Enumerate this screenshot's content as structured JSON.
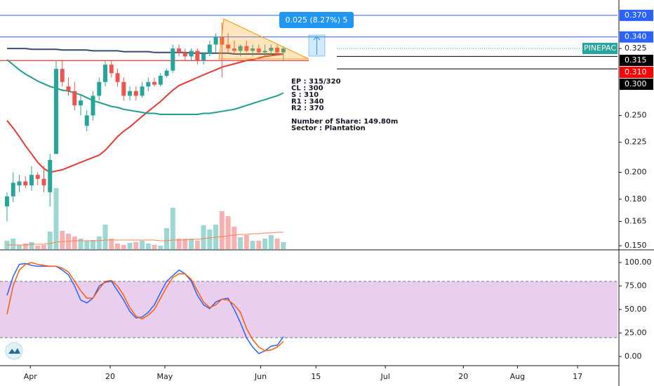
{
  "chart_data": [
    {
      "type": "candlestick",
      "symbol": "PINEPAC",
      "up_color": "#26a69a",
      "down_color": "#ef5350",
      "open": [
        0.175,
        0.182,
        0.19,
        0.193,
        0.19,
        0.198,
        0.195,
        0.185,
        0.215,
        0.3,
        0.28,
        0.275,
        0.26,
        0.24,
        0.25,
        0.27,
        0.285,
        0.305,
        0.295,
        0.285,
        0.27,
        0.275,
        0.27,
        0.28,
        0.285,
        0.282,
        0.292,
        0.298,
        0.325,
        0.32,
        0.315,
        0.322,
        0.31,
        0.318,
        0.33,
        0.34,
        0.33,
        0.325,
        0.322,
        0.328,
        0.322,
        0.325,
        0.32,
        0.322,
        0.326,
        0.32
      ],
      "high": [
        0.185,
        0.2,
        0.198,
        0.197,
        0.205,
        0.2,
        0.205,
        0.215,
        0.31,
        0.31,
        0.29,
        0.285,
        0.27,
        0.255,
        0.275,
        0.29,
        0.31,
        0.31,
        0.3,
        0.29,
        0.28,
        0.28,
        0.285,
        0.29,
        0.29,
        0.295,
        0.3,
        0.33,
        0.33,
        0.325,
        0.325,
        0.325,
        0.32,
        0.335,
        0.345,
        0.36,
        0.345,
        0.335,
        0.33,
        0.335,
        0.33,
        0.33,
        0.33,
        0.33,
        0.33,
        0.328
      ],
      "low": [
        0.165,
        0.178,
        0.185,
        0.188,
        0.186,
        0.19,
        0.185,
        0.175,
        0.215,
        0.28,
        0.27,
        0.255,
        0.25,
        0.235,
        0.245,
        0.265,
        0.28,
        0.29,
        0.28,
        0.265,
        0.265,
        0.265,
        0.268,
        0.275,
        0.28,
        0.28,
        0.29,
        0.295,
        0.315,
        0.31,
        0.31,
        0.305,
        0.305,
        0.315,
        0.32,
        0.29,
        0.32,
        0.318,
        0.315,
        0.32,
        0.315,
        0.318,
        0.315,
        0.315,
        0.318,
        0.31
      ],
      "close": [
        0.182,
        0.192,
        0.193,
        0.19,
        0.198,
        0.195,
        0.19,
        0.21,
        0.3,
        0.285,
        0.275,
        0.26,
        0.265,
        0.25,
        0.27,
        0.285,
        0.305,
        0.295,
        0.285,
        0.27,
        0.275,
        0.27,
        0.28,
        0.285,
        0.282,
        0.292,
        0.298,
        0.325,
        0.32,
        0.315,
        0.322,
        0.31,
        0.318,
        0.33,
        0.34,
        0.33,
        0.325,
        0.322,
        0.328,
        0.322,
        0.325,
        0.32,
        0.322,
        0.326,
        0.32,
        0.325
      ],
      "moving_averages": [
        {
          "color": "#3b4a77",
          "values": [
            0.325,
            0.325,
            0.325,
            0.325,
            0.324,
            0.324,
            0.324,
            0.324,
            0.324,
            0.323,
            0.323,
            0.323,
            0.323,
            0.323,
            0.322,
            0.322,
            0.322,
            0.322,
            0.322,
            0.321,
            0.321,
            0.321,
            0.321,
            0.321,
            0.32,
            0.32,
            0.32,
            0.32,
            0.32,
            0.32,
            0.319,
            0.319,
            0.319,
            0.319,
            0.319,
            0.319,
            0.319,
            0.318,
            0.318,
            0.318,
            0.318,
            0.318,
            0.318,
            0.318,
            0.318,
            0.318
          ]
        },
        {
          "color": "#e53935",
          "values": [
            0.245,
            0.238,
            0.23,
            0.222,
            0.215,
            0.208,
            0.203,
            0.2,
            0.201,
            0.202,
            0.204,
            0.206,
            0.208,
            0.21,
            0.212,
            0.214,
            0.218,
            0.224,
            0.23,
            0.235,
            0.239,
            0.244,
            0.249,
            0.254,
            0.259,
            0.264,
            0.27,
            0.276,
            0.281,
            0.284,
            0.287,
            0.29,
            0.293,
            0.296,
            0.299,
            0.302,
            0.304,
            0.306,
            0.308,
            0.31,
            0.311,
            0.313,
            0.315,
            0.316,
            0.317,
            0.318
          ]
        },
        {
          "color": "#1f9e8c",
          "values": [
            0.311,
            0.305,
            0.299,
            0.294,
            0.29,
            0.286,
            0.283,
            0.28,
            0.278,
            0.276,
            0.275,
            0.273,
            0.271,
            0.268,
            0.265,
            0.263,
            0.261,
            0.259,
            0.258,
            0.256,
            0.255,
            0.254,
            0.253,
            0.252,
            0.252,
            0.251,
            0.251,
            0.251,
            0.251,
            0.251,
            0.251,
            0.251,
            0.252,
            0.252,
            0.253,
            0.254,
            0.255,
            0.256,
            0.258,
            0.26,
            0.262,
            0.264,
            0.266,
            0.268,
            0.27,
            0.273
          ]
        }
      ],
      "log": true,
      "ylim": [
        0.148,
        0.393
      ],
      "yticks": [
        {
          "value": 0.15,
          "label": "0.150"
        },
        {
          "value": 0.165,
          "label": "0.165"
        },
        {
          "value": 0.18,
          "label": "0.180"
        },
        {
          "value": 0.2,
          "label": "0.200"
        },
        {
          "value": 0.225,
          "label": "0.225"
        },
        {
          "value": 0.25,
          "label": "0.250"
        },
        {
          "value": 0.325,
          "label": "0.325"
        }
      ],
      "xlim": [
        -1.14,
        99.4
      ],
      "xticks": [
        {
          "value": 3.8,
          "label": "Apr"
        },
        {
          "value": 16.8,
          "label": "20"
        },
        {
          "value": 25.7,
          "label": "May"
        },
        {
          "value": 41.3,
          "label": "Jun"
        },
        {
          "value": 50.3,
          "label": "15"
        },
        {
          "value": 61.6,
          "label": "Jul"
        },
        {
          "value": 74.3,
          "label": "20"
        },
        {
          "value": 83.1,
          "label": "Aug"
        },
        {
          "value": 92.9,
          "label": "17"
        }
      ],
      "levels": [
        {
          "value": 0.37,
          "label": "0.370",
          "color": "#2962ff",
          "kind": "line"
        },
        {
          "value": 0.34,
          "label": "0.340",
          "color": "#2962ff",
          "kind": "line"
        },
        {
          "value": 0.315,
          "label": "0.315",
          "color": "#000000",
          "kind": "ray"
        },
        {
          "value": 0.31,
          "label": "0.310",
          "color": "#ff0000",
          "kind": "segment"
        },
        {
          "value": 0.3,
          "label": "0.300",
          "color": "#000000",
          "kind": "ray"
        }
      ],
      "measure": "0.025 (8.27%) 5",
      "notes": [
        "EP : 315/320",
        "CL : 300",
        "S : 310",
        "R1 : 340",
        "R2 : 370",
        "",
        "Number of Share: 149.80m",
        "Sector : Plantation"
      ]
    },
    {
      "type": "bar",
      "ylim": [
        0,
        10
      ],
      "values": [
        1.2,
        1.5,
        0.6,
        0.8,
        1.0,
        0.5,
        0.6,
        2.5,
        8.7,
        2.6,
        2.2,
        1.8,
        1.5,
        1.2,
        1.3,
        1.8,
        3.5,
        1.5,
        0.8,
        0.6,
        0.9,
        1.0,
        1.2,
        0.8,
        0.6,
        0.5,
        3.0,
        5.9,
        1.5,
        1.5,
        1.5,
        1.2,
        3.4,
        2.8,
        3.5,
        5.4,
        4.7,
        3.2,
        1.7,
        2.0,
        1.2,
        1.2,
        1.5,
        2.0,
        1.5,
        1.0
      ],
      "ma_color": "#ff7f50",
      "ma_values": [
        0.6,
        0.6,
        0.6,
        0.6,
        0.7,
        0.7,
        0.7,
        0.8,
        1.0,
        1.1,
        1.1,
        1.2,
        1.2,
        1.2,
        1.2,
        1.2,
        1.3,
        1.3,
        1.3,
        1.3,
        1.3,
        1.3,
        1.3,
        1.3,
        1.3,
        1.2,
        1.2,
        1.3,
        1.3,
        1.3,
        1.4,
        1.4,
        1.5,
        1.6,
        1.7,
        1.8,
        1.9,
        2.0,
        2.1,
        2.1,
        2.2,
        2.2,
        2.3,
        2.3,
        2.4,
        2.4
      ]
    },
    {
      "type": "line",
      "ylim": [
        -9,
        112
      ],
      "yticks": [
        {
          "value": 100,
          "label": "100.00"
        },
        {
          "value": 75,
          "label": "75.00"
        },
        {
          "value": 50,
          "label": "50.00"
        },
        {
          "value": 25,
          "label": "25.00"
        },
        {
          "value": 0,
          "label": "0.00"
        }
      ],
      "bands": [
        20,
        80
      ],
      "band_color": "#e1bee7",
      "series": [
        {
          "color": "#2962ff",
          "values": [
            65,
            85,
            98,
            99,
            97,
            96,
            96,
            96,
            96,
            92,
            87,
            75,
            60,
            57,
            62,
            75,
            79,
            80,
            70,
            60,
            48,
            41,
            42,
            47,
            55,
            68,
            80,
            86,
            92,
            88,
            80,
            65,
            55,
            51,
            58,
            61,
            62,
            50,
            36,
            20,
            10,
            3,
            6,
            11,
            12,
            21
          ]
        },
        {
          "color": "#ff5d00",
          "values": [
            45,
            75,
            92,
            98,
            100,
            98,
            97,
            96,
            96,
            94,
            90,
            80,
            70,
            62,
            62,
            72,
            80,
            81,
            75,
            65,
            52,
            43,
            40,
            44,
            50,
            62,
            74,
            84,
            88,
            88,
            82,
            70,
            58,
            52,
            55,
            61,
            60,
            55,
            47,
            30,
            18,
            10,
            6,
            7,
            10,
            16
          ]
        }
      ]
    }
  ]
}
